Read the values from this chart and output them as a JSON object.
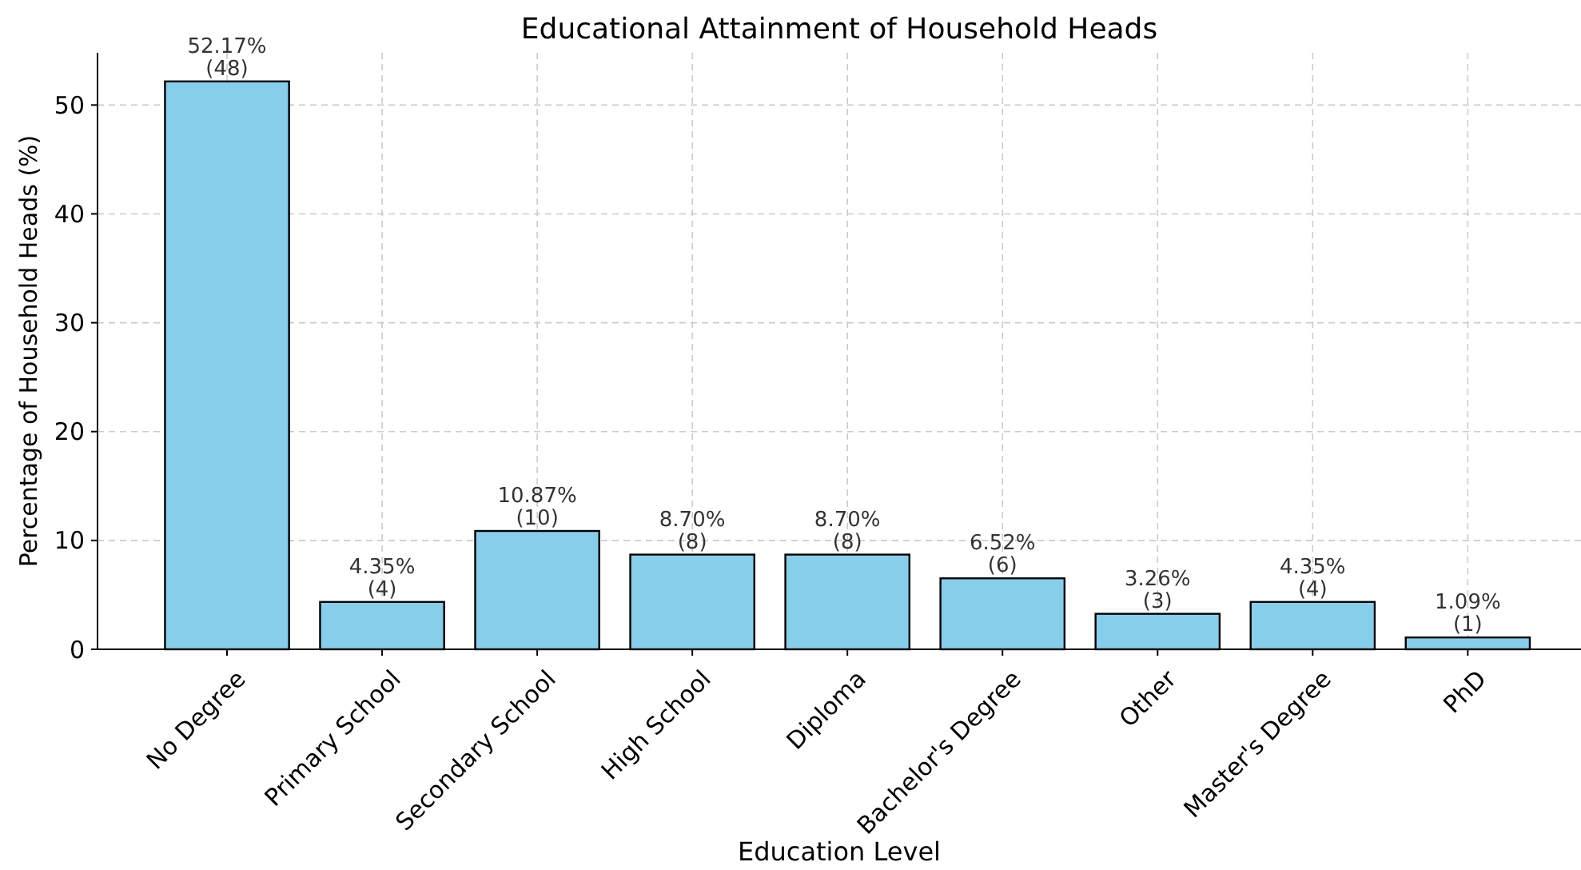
{
  "chart_data": {
    "type": "bar",
    "title": "Educational Attainment of Household Heads",
    "xlabel": "Education Level",
    "ylabel": "Percentage of Household Heads (%)",
    "categories": [
      "No Degree",
      "Primary School",
      "Secondary School",
      "High School",
      "Diploma",
      "Bachelor's Degree",
      "Other",
      "Master's Degree",
      "PhD"
    ],
    "values": [
      52.17,
      4.35,
      10.87,
      8.7,
      8.7,
      6.52,
      3.26,
      4.35,
      1.09
    ],
    "value_labels": [
      "52.17%\n(48)",
      "4.35%\n(4)",
      "10.87%\n(10)",
      "8.70%\n(8)",
      "8.70%\n(8)",
      "6.52%\n(6)",
      "3.26%\n(3)",
      "4.35%\n(4)",
      "1.09%\n(1)"
    ],
    "color": "#87ceeb",
    "ylim": [
      0,
      54.8
    ],
    "yticks": [
      0,
      10,
      20,
      30,
      40,
      50
    ],
    "grid": true
  }
}
